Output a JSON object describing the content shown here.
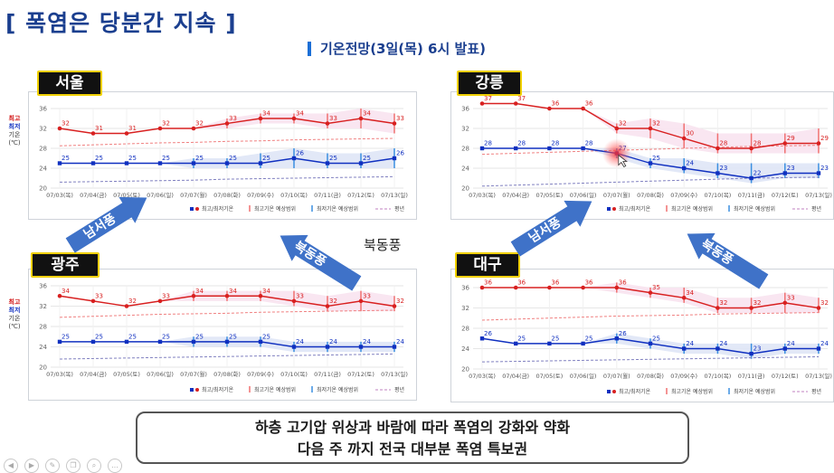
{
  "title": "[ 폭염은 당분간 지속 ]",
  "subtitle": "기온전망(3일(목) 6시 발표)",
  "axis_side": {
    "max": "최고",
    "min": "최저",
    "label": "기온",
    "unit": "(℃)"
  },
  "legend": {
    "obs": "최고/최저기온",
    "max_range": "최고기온 예상범위",
    "min_range": "최저기온 예상범위",
    "normal": "평년"
  },
  "colors": {
    "max": "#d82020",
    "min": "#1030c0",
    "max_band": "#f8e3ef",
    "min_band": "#dfe6f6"
  },
  "arrows": [
    {
      "label": "남서풍",
      "dir": "up"
    },
    {
      "label": "북동풍",
      "dir": "down"
    },
    {
      "label": "남서풍",
      "dir": "up"
    },
    {
      "label": "북동풍",
      "dir": "down"
    }
  ],
  "wind_note": "북동풍",
  "summary": {
    "line1": "하층 고기압 위상과 바람에 따라 폭염의 강화와 약화",
    "line2": "다음 주 까지 전국 대부분 폭염 특보권"
  },
  "toolbar_icons": [
    "prev-icon",
    "next-icon",
    "pen-icon",
    "copy-icon",
    "zoom-icon",
    "more-icon"
  ],
  "chart_data": [
    {
      "type": "line",
      "city": "서울",
      "x": [
        "07/03(목)",
        "07/04(금)",
        "07/05(토)",
        "07/06(일)",
        "07/07(월)",
        "07/08(화)",
        "07/09(수)",
        "07/10(목)",
        "07/11(금)",
        "07/12(토)",
        "07/13(일)"
      ],
      "ylim": [
        20,
        36
      ],
      "yticks": [
        20,
        24,
        28,
        32,
        36
      ],
      "series": [
        {
          "name": "최고기온",
          "values": [
            32,
            31,
            31,
            32,
            32,
            33,
            34,
            34,
            33,
            34,
            33
          ]
        },
        {
          "name": "최저기온",
          "values": [
            25,
            25,
            25,
            25,
            25,
            25,
            25,
            26,
            25,
            25,
            26
          ]
        }
      ],
      "normal_max": [
        28.5,
        28.7,
        28.9,
        29.1,
        29.2,
        29.4,
        29.5,
        29.7,
        29.8,
        29.9,
        30.0
      ],
      "normal_min": [
        21.2,
        21.3,
        21.4,
        21.5,
        21.6,
        21.8,
        21.9,
        22.0,
        22.1,
        22.2,
        22.3
      ],
      "max_range": [
        [
          32,
          32
        ],
        [
          31,
          31
        ],
        [
          31,
          31
        ],
        [
          32,
          32
        ],
        [
          32,
          32
        ],
        [
          32,
          34
        ],
        [
          33,
          35
        ],
        [
          33,
          35
        ],
        [
          32,
          35
        ],
        [
          32,
          36
        ],
        [
          31,
          35
        ]
      ],
      "min_range": [
        [
          25,
          25
        ],
        [
          25,
          25
        ],
        [
          25,
          25
        ],
        [
          25,
          25
        ],
        [
          24,
          26
        ],
        [
          24,
          26
        ],
        [
          24,
          27
        ],
        [
          24,
          28
        ],
        [
          24,
          27
        ],
        [
          24,
          27
        ],
        [
          24,
          28
        ]
      ]
    },
    {
      "type": "line",
      "city": "강릉",
      "x": [
        "07/03(목)",
        "07/04(금)",
        "07/05(토)",
        "07/06(일)",
        "07/07(월)",
        "07/08(화)",
        "07/09(수)",
        "07/10(목)",
        "07/11(금)",
        "07/12(토)",
        "07/13(일)"
      ],
      "ylim": [
        20,
        36
      ],
      "yticks": [
        20,
        24,
        28,
        32,
        36
      ],
      "series": [
        {
          "name": "최고기온",
          "values": [
            37,
            37,
            36,
            36,
            32,
            32,
            30,
            28,
            28,
            29,
            29
          ]
        },
        {
          "name": "최저기온",
          "values": [
            28,
            28,
            28,
            28,
            27,
            25,
            24,
            23,
            22,
            23,
            23
          ]
        }
      ],
      "normal_max": [
        26.8,
        27.0,
        27.2,
        27.4,
        27.6,
        27.8,
        28.0,
        28.2,
        28.4,
        28.5,
        28.6
      ],
      "normal_min": [
        20.4,
        20.6,
        20.8,
        21.0,
        21.2,
        21.4,
        21.6,
        21.8,
        22.0,
        22.1,
        22.2
      ],
      "max_range": [
        [
          37,
          37
        ],
        [
          37,
          37
        ],
        [
          36,
          36
        ],
        [
          36,
          36
        ],
        [
          31,
          33
        ],
        [
          30,
          34
        ],
        [
          28,
          33
        ],
        [
          27,
          31
        ],
        [
          27,
          31
        ],
        [
          27,
          31
        ],
        [
          27,
          32
        ]
      ],
      "min_range": [
        [
          28,
          28
        ],
        [
          28,
          28
        ],
        [
          28,
          28
        ],
        [
          28,
          28
        ],
        [
          26,
          28
        ],
        [
          24,
          26
        ],
        [
          23,
          26
        ],
        [
          22,
          25
        ],
        [
          21,
          25
        ],
        [
          22,
          25
        ],
        [
          22,
          25
        ]
      ]
    },
    {
      "type": "line",
      "city": "광주",
      "x": [
        "07/03(목)",
        "07/04(금)",
        "07/05(토)",
        "07/06(일)",
        "07/07(월)",
        "07/08(화)",
        "07/09(수)",
        "07/10(목)",
        "07/11(금)",
        "07/12(토)",
        "07/13(일)"
      ],
      "ylim": [
        20,
        36
      ],
      "yticks": [
        20,
        24,
        28,
        32,
        36
      ],
      "series": [
        {
          "name": "최고기온",
          "values": [
            34,
            33,
            32,
            33,
            34,
            34,
            34,
            33,
            32,
            33,
            32
          ]
        },
        {
          "name": "최저기온",
          "values": [
            25,
            25,
            25,
            25,
            25,
            25,
            25,
            24,
            24,
            24,
            24
          ]
        }
      ],
      "normal_max": [
        29.8,
        30.0,
        30.2,
        30.4,
        30.5,
        30.6,
        30.8,
        30.9,
        31.0,
        31.1,
        31.2
      ],
      "normal_min": [
        21.6,
        21.7,
        21.8,
        21.9,
        22.0,
        22.1,
        22.2,
        22.3,
        22.4,
        22.5,
        22.6
      ],
      "max_range": [
        [
          34,
          34
        ],
        [
          33,
          33
        ],
        [
          32,
          32
        ],
        [
          33,
          33
        ],
        [
          33,
          35
        ],
        [
          33,
          35
        ],
        [
          33,
          35
        ],
        [
          32,
          35
        ],
        [
          31,
          34
        ],
        [
          31,
          35
        ],
        [
          31,
          34
        ]
      ],
      "min_range": [
        [
          25,
          25
        ],
        [
          25,
          25
        ],
        [
          25,
          25
        ],
        [
          25,
          25
        ],
        [
          24,
          26
        ],
        [
          24,
          26
        ],
        [
          24,
          26
        ],
        [
          23,
          25
        ],
        [
          23,
          25
        ],
        [
          23,
          25
        ],
        [
          23,
          25
        ]
      ]
    },
    {
      "type": "line",
      "city": "대구",
      "x": [
        "07/03(목)",
        "07/04(금)",
        "07/05(토)",
        "07/06(일)",
        "07/07(월)",
        "07/08(화)",
        "07/09(수)",
        "07/10(목)",
        "07/11(금)",
        "07/12(토)",
        "07/13(일)"
      ],
      "ylim": [
        20,
        36
      ],
      "yticks": [
        20,
        24,
        28,
        32,
        36
      ],
      "series": [
        {
          "name": "최고기온",
          "values": [
            36,
            36,
            36,
            36,
            36,
            35,
            34,
            32,
            32,
            33,
            32
          ]
        },
        {
          "name": "최저기온",
          "values": [
            26,
            25,
            25,
            25,
            26,
            25,
            24,
            24,
            23,
            24,
            24
          ]
        }
      ],
      "normal_max": [
        29.6,
        29.8,
        30.0,
        30.2,
        30.4,
        30.5,
        30.6,
        30.8,
        30.9,
        31.0,
        31.1
      ],
      "normal_min": [
        21.4,
        21.5,
        21.6,
        21.7,
        21.8,
        21.9,
        22.0,
        22.1,
        22.2,
        22.3,
        22.4
      ],
      "max_range": [
        [
          36,
          36
        ],
        [
          36,
          36
        ],
        [
          36,
          36
        ],
        [
          36,
          36
        ],
        [
          35,
          37
        ],
        [
          34,
          36
        ],
        [
          33,
          36
        ],
        [
          31,
          34
        ],
        [
          31,
          34
        ],
        [
          31,
          35
        ],
        [
          31,
          34
        ]
      ],
      "min_range": [
        [
          26,
          26
        ],
        [
          25,
          25
        ],
        [
          25,
          25
        ],
        [
          25,
          25
        ],
        [
          25,
          27
        ],
        [
          24,
          26
        ],
        [
          23,
          25
        ],
        [
          23,
          25
        ],
        [
          22,
          25
        ],
        [
          23,
          25
        ],
        [
          23,
          25
        ]
      ]
    }
  ]
}
